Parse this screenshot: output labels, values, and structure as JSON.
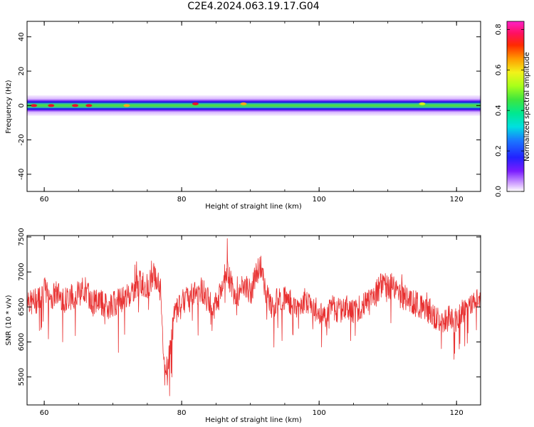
{
  "figure": {
    "title": "C2E4.2024.063.19.17.G04"
  },
  "chart_data": [
    {
      "type": "heatmap",
      "xlabel": "Height of straight line (km)",
      "ylabel": "Frequency (Hz)",
      "xlim": [
        57.5,
        123.5
      ],
      "ylim": [
        -50,
        49
      ],
      "xticks": [
        60,
        80,
        100,
        120
      ],
      "yticks": [
        -40,
        -20,
        0,
        20,
        40
      ],
      "description_values": {
        "band_center_hz": 0,
        "band_core_halfwidth_hz": 2,
        "band_outer_halfwidth_hz": 6
      },
      "hotspots": [
        {
          "x": 58.5,
          "y": 0,
          "amplitude": 0.8
        },
        {
          "x": 61,
          "y": 0,
          "amplitude": 0.8
        },
        {
          "x": 64.5,
          "y": 0,
          "amplitude": 0.8
        },
        {
          "x": 66.5,
          "y": 0,
          "amplitude": 0.75
        },
        {
          "x": 72,
          "y": 0,
          "amplitude": 0.65
        },
        {
          "x": 82,
          "y": 1,
          "amplitude": 0.8
        },
        {
          "x": 89,
          "y": 1,
          "amplitude": 0.6
        },
        {
          "x": 115,
          "y": 1,
          "amplitude": 0.55
        }
      ],
      "colorbar": {
        "label": "Normalized spectral amplitude",
        "range": [
          0,
          0.84
        ],
        "ticks": [
          0.0,
          0.2,
          0.4,
          0.6,
          0.8
        ],
        "colormap": "gist_ncar-like (violet-blue-cyan-green-yellow-red-magenta)"
      }
    },
    {
      "type": "line",
      "xlabel": "Height of straight line (km)",
      "ylabel": "SNR (10 * v/v)",
      "xlim": [
        57.5,
        123.5
      ],
      "ylim": [
        5100,
        7520
      ],
      "xticks": [
        60,
        80,
        100,
        120
      ],
      "yticks": [
        5500,
        6000,
        6500,
        7000,
        7500
      ],
      "series": [
        {
          "color": "#e83030",
          "x": [
            57.5,
            58,
            59,
            60,
            61,
            62,
            63,
            64,
            65,
            66,
            67,
            68,
            69,
            70,
            71,
            72,
            73,
            74,
            75,
            76,
            77,
            77.5,
            78,
            79,
            80,
            81,
            82,
            83,
            84,
            85,
            86,
            86.5,
            87,
            88,
            89,
            90,
            91,
            91.5,
            92,
            93,
            94,
            95,
            96,
            97,
            98,
            99,
            100,
            101,
            102,
            103,
            104,
            105,
            106,
            107,
            108,
            109,
            110,
            111,
            112,
            113,
            114,
            115,
            116,
            117,
            118,
            119,
            120,
            121,
            122,
            123,
            123.5
          ],
          "y": [
            6700,
            6550,
            6600,
            6750,
            6650,
            6700,
            6600,
            6650,
            6700,
            6750,
            6550,
            6600,
            6500,
            6550,
            6600,
            6650,
            6750,
            6850,
            6800,
            6950,
            6700,
            5500,
            5700,
            6400,
            6650,
            6600,
            6700,
            6750,
            6550,
            6500,
            6800,
            7050,
            6900,
            6500,
            6850,
            6700,
            7000,
            7100,
            6800,
            6500,
            6600,
            6650,
            6550,
            6500,
            6600,
            6550,
            6400,
            6350,
            6500,
            6450,
            6500,
            6450,
            6500,
            6550,
            6700,
            6800,
            6800,
            6750,
            6650,
            6600,
            6550,
            6500,
            6450,
            6350,
            6300,
            6350,
            6300,
            6450,
            6550,
            6600,
            6650
          ]
        }
      ]
    }
  ]
}
